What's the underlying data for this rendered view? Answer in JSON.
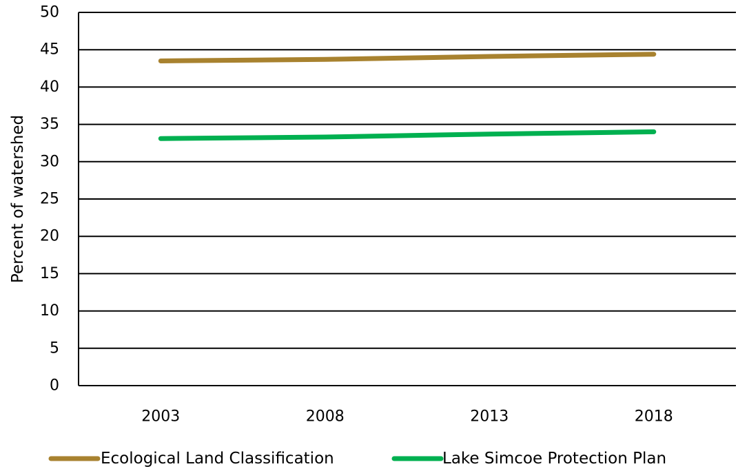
{
  "chart_data": {
    "type": "line",
    "title": "",
    "xlabel": "",
    "ylabel": "Percent of watershed",
    "ylim": [
      0,
      50
    ],
    "y_ticks": [
      0,
      5,
      10,
      15,
      20,
      25,
      30,
      35,
      40,
      45,
      50
    ],
    "categories": [
      "2003",
      "2008",
      "2013",
      "2018"
    ],
    "grid": "horizontal",
    "legend_position": "bottom",
    "series": [
      {
        "name": "Ecological Land Classification",
        "color": "#a8822f",
        "values": [
          43.5,
          43.7,
          44.1,
          44.4
        ]
      },
      {
        "name": "Lake Simcoe Protection Plan",
        "color": "#00b050",
        "values": [
          33.1,
          33.3,
          33.7,
          34.0
        ]
      }
    ]
  }
}
